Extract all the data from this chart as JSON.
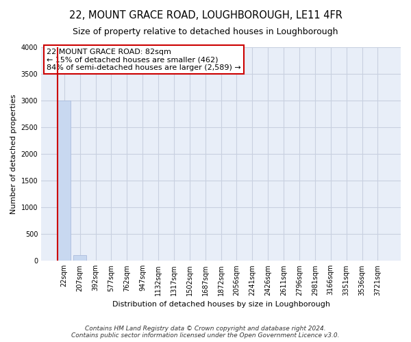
{
  "title": "22, MOUNT GRACE ROAD, LOUGHBOROUGH, LE11 4FR",
  "subtitle": "Size of property relative to detached houses in Loughborough",
  "xlabel": "Distribution of detached houses by size in Loughborough",
  "ylabel": "Number of detached properties",
  "bar_labels": [
    "22sqm",
    "207sqm",
    "392sqm",
    "577sqm",
    "762sqm",
    "947sqm",
    "1132sqm",
    "1317sqm",
    "1502sqm",
    "1687sqm",
    "1872sqm",
    "2056sqm",
    "2241sqm",
    "2426sqm",
    "2611sqm",
    "2796sqm",
    "2981sqm",
    "3166sqm",
    "3351sqm",
    "3536sqm",
    "3721sqm"
  ],
  "bar_values": [
    3000,
    110,
    0,
    0,
    0,
    0,
    0,
    0,
    0,
    0,
    0,
    0,
    0,
    0,
    0,
    0,
    0,
    0,
    0,
    0,
    0
  ],
  "bar_color": "#c8d8f0",
  "bar_edge_color": "#aabbdd",
  "property_bar_index": 0,
  "property_line_color": "#cc0000",
  "ylim": [
    0,
    4000
  ],
  "yticks": [
    0,
    500,
    1000,
    1500,
    2000,
    2500,
    3000,
    3500,
    4000
  ],
  "annotation_box_text": "22 MOUNT GRACE ROAD: 82sqm\n← 15% of detached houses are smaller (462)\n84% of semi-detached houses are larger (2,589) →",
  "annotation_box_color": "#ffffff",
  "annotation_box_edge_color": "#cc0000",
  "footer_line1": "Contains HM Land Registry data © Crown copyright and database right 2024.",
  "footer_line2": "Contains public sector information licensed under the Open Government Licence v3.0.",
  "figure_bg_color": "#ffffff",
  "plot_bg_color": "#e8eef8",
  "grid_color": "#c8d0e0",
  "title_fontsize": 10.5,
  "subtitle_fontsize": 9,
  "axis_label_fontsize": 8,
  "tick_fontsize": 7,
  "annotation_fontsize": 8,
  "footer_fontsize": 6.5
}
